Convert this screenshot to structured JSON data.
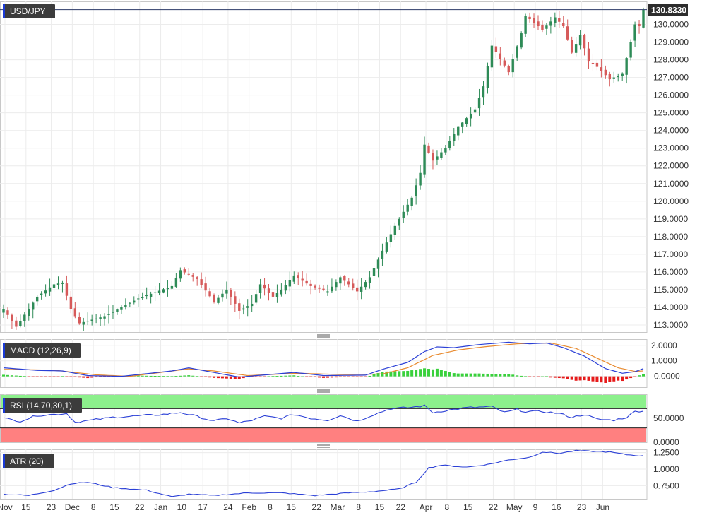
{
  "colors": {
    "up": "#2e8b57",
    "down": "#d65a5a",
    "macd_line": "#2a3fd6",
    "signal_line": "#e88a2e",
    "hist_pos": "#39d13c",
    "hist_neg": "#e61a1a",
    "rsi_line": "#2a3fd6",
    "atr_line": "#2a3fd6",
    "rsi_over_zone": "#8cf08c",
    "rsi_under_zone": "#ff8080",
    "label_bg": "#3c3c3c",
    "price_tag_bg": "#2d2d2d",
    "accent": "#1a3ad6"
  },
  "chart_data": [
    {
      "type": "candlestick",
      "title": "USD/JPY",
      "last_price_label": "130.8330",
      "ylim": [
        112.6,
        131.3
      ],
      "yticks": [
        "113.0000",
        "114.0000",
        "115.0000",
        "116.0000",
        "117.0000",
        "118.0000",
        "119.0000",
        "120.0000",
        "121.0000",
        "122.0000",
        "123.0000",
        "124.0000",
        "125.0000",
        "126.0000",
        "127.0000",
        "128.0000",
        "129.0000",
        "130.0000"
      ],
      "x_ticks": [
        "Nov",
        "15",
        "23",
        "Dec",
        "8",
        "15",
        "22",
        "Jan",
        "10",
        "17",
        "24",
        "Feb",
        "8",
        "15",
        "22",
        "Mar",
        "8",
        "15",
        "22",
        "Apr",
        "8",
        "15",
        "22",
        "May",
        "9",
        "16",
        "23",
        "Jun"
      ],
      "anchors": [
        {
          "i": 0,
          "v": 113.9
        },
        {
          "i": 3,
          "v": 112.9
        },
        {
          "i": 8,
          "v": 114.6
        },
        {
          "i": 12,
          "v": 115.3
        },
        {
          "i": 14,
          "v": 115.4
        },
        {
          "i": 16,
          "v": 113.9
        },
        {
          "i": 18,
          "v": 113.1
        },
        {
          "i": 24,
          "v": 113.5
        },
        {
          "i": 32,
          "v": 114.5
        },
        {
          "i": 40,
          "v": 115.2
        },
        {
          "i": 42,
          "v": 116.1
        },
        {
          "i": 46,
          "v": 115.6
        },
        {
          "i": 50,
          "v": 114.3
        },
        {
          "i": 53,
          "v": 115.0
        },
        {
          "i": 56,
          "v": 113.8
        },
        {
          "i": 59,
          "v": 114.2
        },
        {
          "i": 61,
          "v": 115.3
        },
        {
          "i": 64,
          "v": 114.6
        },
        {
          "i": 66,
          "v": 115.0
        },
        {
          "i": 69,
          "v": 115.8
        },
        {
          "i": 73,
          "v": 115.2
        },
        {
          "i": 77,
          "v": 114.9
        },
        {
          "i": 80,
          "v": 115.7
        },
        {
          "i": 84,
          "v": 114.9
        },
        {
          "i": 87,
          "v": 115.7
        },
        {
          "i": 90,
          "v": 117.2
        },
        {
          "i": 93,
          "v": 118.6
        },
        {
          "i": 97,
          "v": 120.2
        },
        {
          "i": 99,
          "v": 121.6
        },
        {
          "i": 100,
          "v": 123.2
        },
        {
          "i": 102,
          "v": 122.3
        },
        {
          "i": 105,
          "v": 123.0
        },
        {
          "i": 108,
          "v": 124.2
        },
        {
          "i": 112,
          "v": 125.2
        },
        {
          "i": 114,
          "v": 126.5
        },
        {
          "i": 116,
          "v": 128.8
        },
        {
          "i": 120,
          "v": 127.3
        },
        {
          "i": 123,
          "v": 129.5
        },
        {
          "i": 124,
          "v": 130.5
        },
        {
          "i": 128,
          "v": 129.7
        },
        {
          "i": 131,
          "v": 130.4
        },
        {
          "i": 133,
          "v": 129.9
        },
        {
          "i": 135,
          "v": 128.4
        },
        {
          "i": 137,
          "v": 129.4
        },
        {
          "i": 139,
          "v": 127.9
        },
        {
          "i": 141,
          "v": 127.6
        },
        {
          "i": 144,
          "v": 126.9
        },
        {
          "i": 147,
          "v": 127.2
        },
        {
          "i": 149,
          "v": 129.0
        },
        {
          "i": 150,
          "v": 130.0
        },
        {
          "i": 151,
          "v": 129.9
        },
        {
          "i": 152,
          "v": 130.83
        }
      ]
    },
    {
      "type": "line",
      "title": "MACD (12,26,9)",
      "ylim": [
        -0.7,
        2.4
      ],
      "yticks": [
        "2.0000",
        "1.0000",
        "-0.0000"
      ],
      "macd_anchors": [
        {
          "i": 0,
          "v": 0.55
        },
        {
          "i": 8,
          "v": 0.38
        },
        {
          "i": 14,
          "v": 0.35
        },
        {
          "i": 20,
          "v": 0.05
        },
        {
          "i": 28,
          "v": 0.0
        },
        {
          "i": 40,
          "v": 0.35
        },
        {
          "i": 44,
          "v": 0.55
        },
        {
          "i": 48,
          "v": 0.35
        },
        {
          "i": 56,
          "v": -0.05
        },
        {
          "i": 60,
          "v": 0.05
        },
        {
          "i": 69,
          "v": 0.25
        },
        {
          "i": 76,
          "v": 0.05
        },
        {
          "i": 86,
          "v": 0.08
        },
        {
          "i": 90,
          "v": 0.45
        },
        {
          "i": 96,
          "v": 0.9
        },
        {
          "i": 100,
          "v": 1.6
        },
        {
          "i": 103,
          "v": 1.9
        },
        {
          "i": 107,
          "v": 1.85
        },
        {
          "i": 113,
          "v": 2.05
        },
        {
          "i": 120,
          "v": 2.2
        },
        {
          "i": 125,
          "v": 2.1
        },
        {
          "i": 129,
          "v": 2.15
        },
        {
          "i": 133,
          "v": 1.85
        },
        {
          "i": 138,
          "v": 1.3
        },
        {
          "i": 143,
          "v": 0.5
        },
        {
          "i": 147,
          "v": 0.2
        },
        {
          "i": 150,
          "v": 0.3
        },
        {
          "i": 152,
          "v": 0.5
        }
      ],
      "signal_anchors": [
        {
          "i": 0,
          "v": 0.45
        },
        {
          "i": 12,
          "v": 0.4
        },
        {
          "i": 22,
          "v": 0.1
        },
        {
          "i": 30,
          "v": 0.0
        },
        {
          "i": 44,
          "v": 0.48
        },
        {
          "i": 50,
          "v": 0.35
        },
        {
          "i": 58,
          "v": 0.05
        },
        {
          "i": 70,
          "v": 0.2
        },
        {
          "i": 80,
          "v": 0.12
        },
        {
          "i": 90,
          "v": 0.15
        },
        {
          "i": 96,
          "v": 0.55
        },
        {
          "i": 102,
          "v": 1.35
        },
        {
          "i": 108,
          "v": 1.7
        },
        {
          "i": 114,
          "v": 1.9
        },
        {
          "i": 122,
          "v": 2.1
        },
        {
          "i": 130,
          "v": 2.15
        },
        {
          "i": 136,
          "v": 1.8
        },
        {
          "i": 142,
          "v": 1.05
        },
        {
          "i": 146,
          "v": 0.55
        },
        {
          "i": 150,
          "v": 0.32
        },
        {
          "i": 152,
          "v": 0.35
        }
      ]
    },
    {
      "type": "line",
      "title": "RSI (14,70,30,1)",
      "ylim": [
        0,
        100
      ],
      "levels": [
        70,
        30
      ],
      "yticks": [
        "50.0000",
        "0.0000"
      ],
      "anchors": [
        {
          "i": 0,
          "v": 50
        },
        {
          "i": 4,
          "v": 44
        },
        {
          "i": 8,
          "v": 56
        },
        {
          "i": 12,
          "v": 58
        },
        {
          "i": 15,
          "v": 60
        },
        {
          "i": 17,
          "v": 42
        },
        {
          "i": 20,
          "v": 45
        },
        {
          "i": 26,
          "v": 52
        },
        {
          "i": 32,
          "v": 55
        },
        {
          "i": 38,
          "v": 58
        },
        {
          "i": 42,
          "v": 62
        },
        {
          "i": 45,
          "v": 56
        },
        {
          "i": 50,
          "v": 44
        },
        {
          "i": 53,
          "v": 50
        },
        {
          "i": 56,
          "v": 40
        },
        {
          "i": 59,
          "v": 46
        },
        {
          "i": 62,
          "v": 54
        },
        {
          "i": 66,
          "v": 50
        },
        {
          "i": 69,
          "v": 58
        },
        {
          "i": 73,
          "v": 50
        },
        {
          "i": 77,
          "v": 46
        },
        {
          "i": 80,
          "v": 56
        },
        {
          "i": 84,
          "v": 44
        },
        {
          "i": 88,
          "v": 58
        },
        {
          "i": 92,
          "v": 70
        },
        {
          "i": 96,
          "v": 72
        },
        {
          "i": 100,
          "v": 76
        },
        {
          "i": 102,
          "v": 62
        },
        {
          "i": 105,
          "v": 66
        },
        {
          "i": 110,
          "v": 72
        },
        {
          "i": 116,
          "v": 74
        },
        {
          "i": 119,
          "v": 62
        },
        {
          "i": 122,
          "v": 68
        },
        {
          "i": 124,
          "v": 64
        },
        {
          "i": 128,
          "v": 64
        },
        {
          "i": 132,
          "v": 60
        },
        {
          "i": 135,
          "v": 52
        },
        {
          "i": 138,
          "v": 58
        },
        {
          "i": 141,
          "v": 48
        },
        {
          "i": 145,
          "v": 46
        },
        {
          "i": 148,
          "v": 52
        },
        {
          "i": 150,
          "v": 64
        },
        {
          "i": 152,
          "v": 66
        }
      ]
    },
    {
      "type": "line",
      "title": "ATR (20)",
      "ylim": [
        0.55,
        1.3
      ],
      "yticks": [
        "1.2500",
        "1.0000",
        "0.7500"
      ],
      "anchors": [
        {
          "i": 0,
          "v": 0.62
        },
        {
          "i": 6,
          "v": 0.6
        },
        {
          "i": 12,
          "v": 0.68
        },
        {
          "i": 16,
          "v": 0.78
        },
        {
          "i": 20,
          "v": 0.8
        },
        {
          "i": 26,
          "v": 0.72
        },
        {
          "i": 34,
          "v": 0.68
        },
        {
          "i": 40,
          "v": 0.58
        },
        {
          "i": 44,
          "v": 0.62
        },
        {
          "i": 50,
          "v": 0.6
        },
        {
          "i": 58,
          "v": 0.64
        },
        {
          "i": 66,
          "v": 0.64
        },
        {
          "i": 74,
          "v": 0.6
        },
        {
          "i": 82,
          "v": 0.64
        },
        {
          "i": 88,
          "v": 0.66
        },
        {
          "i": 94,
          "v": 0.7
        },
        {
          "i": 98,
          "v": 0.8
        },
        {
          "i": 101,
          "v": 1.02
        },
        {
          "i": 104,
          "v": 1.06
        },
        {
          "i": 110,
          "v": 1.03
        },
        {
          "i": 115,
          "v": 1.07
        },
        {
          "i": 120,
          "v": 1.14
        },
        {
          "i": 125,
          "v": 1.18
        },
        {
          "i": 128,
          "v": 1.26
        },
        {
          "i": 132,
          "v": 1.24
        },
        {
          "i": 136,
          "v": 1.28
        },
        {
          "i": 140,
          "v": 1.27
        },
        {
          "i": 144,
          "v": 1.26
        },
        {
          "i": 148,
          "v": 1.22
        },
        {
          "i": 152,
          "v": 1.2
        }
      ]
    }
  ]
}
